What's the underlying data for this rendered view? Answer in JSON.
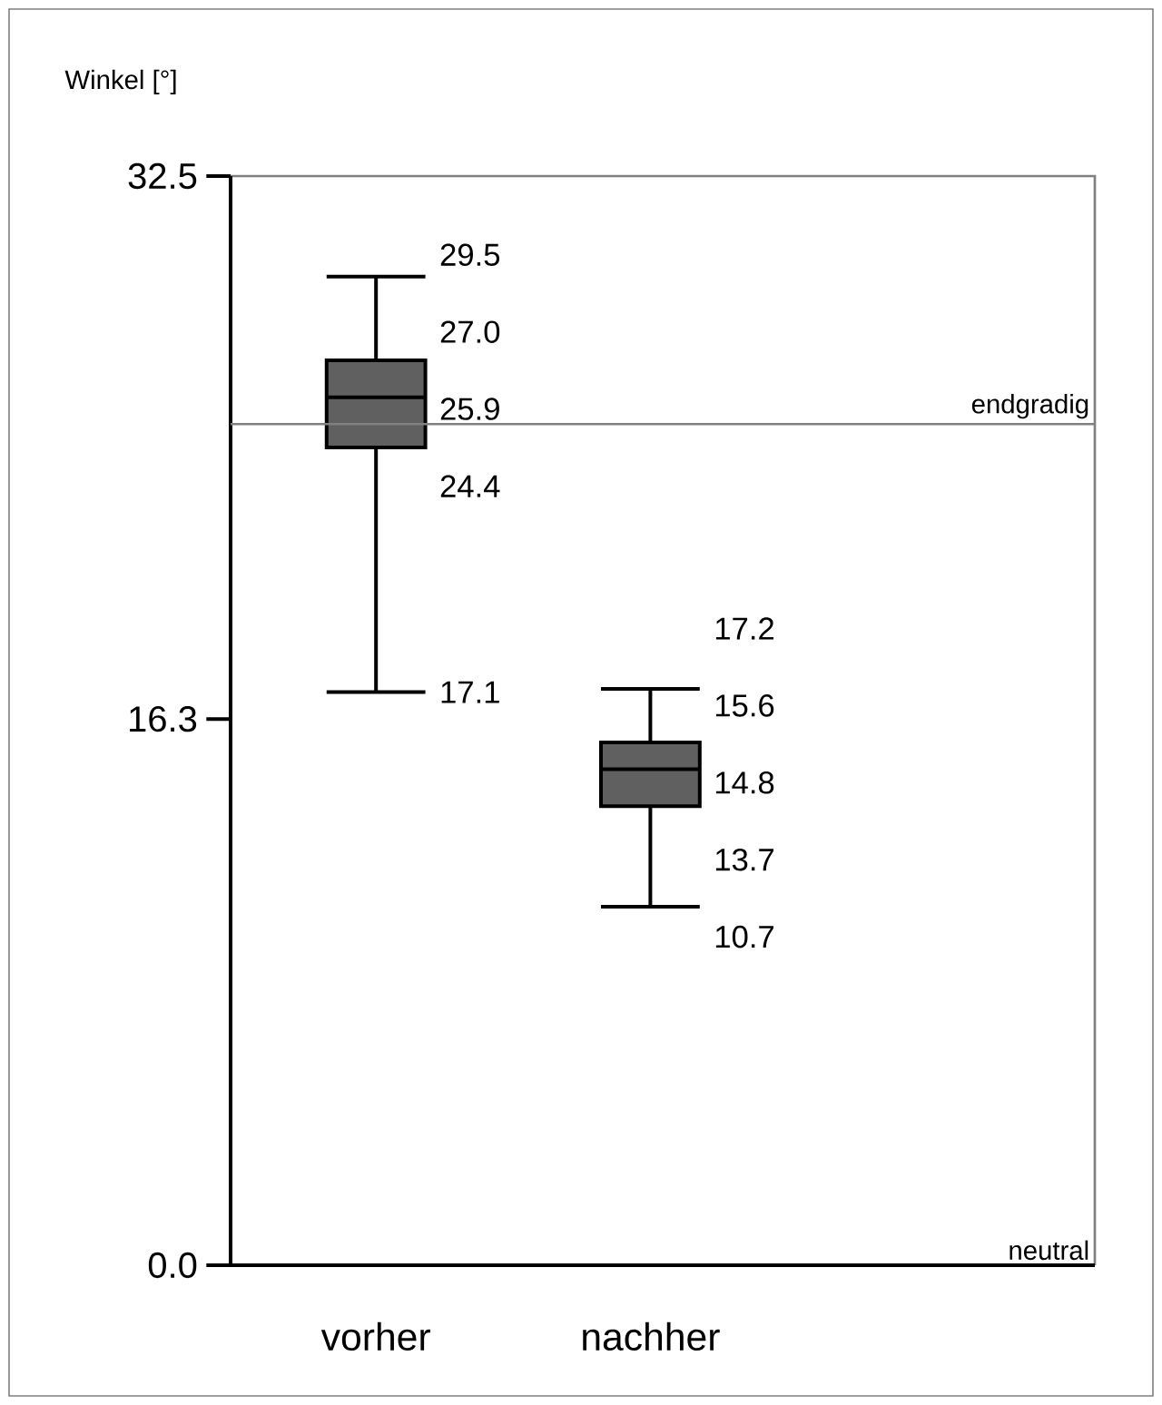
{
  "chart_data": {
    "type": "box",
    "ylabel": "Winkel [°]",
    "categories": [
      "vorher",
      "nachher"
    ],
    "boxes": [
      {
        "low": 17.1,
        "q1": 24.4,
        "median": 25.9,
        "q3": 27.0,
        "high": 29.5
      },
      {
        "low": 10.7,
        "q1": 13.7,
        "median": 14.8,
        "q3": 15.6,
        "high": 17.2
      }
    ],
    "color": "#606060",
    "ylim": [
      0,
      32.5
    ],
    "yticks": [
      {
        "value": 0,
        "label": "0.0"
      },
      16.3,
      32.5
    ],
    "ref_lines": [
      {
        "axis": "y",
        "value": 25.1,
        "label": "endgradig",
        "color": "#808080"
      }
    ],
    "annotations": [
      {
        "text": "29.5",
        "x": "vorher",
        "y": 29.5
      },
      {
        "text": "27.0",
        "x": "vorher",
        "y": 27.0
      },
      {
        "text": "25.9",
        "x": "vorher",
        "y": 25.9
      },
      {
        "text": "24.4",
        "x": "vorher",
        "y": 24.4
      },
      {
        "text": "17.1",
        "x": "vorher",
        "y": 17.1
      },
      {
        "text": "17.2",
        "x": "nachher",
        "y": 17.2
      },
      {
        "text": "15.6",
        "x": "nachher",
        "y": 15.6
      },
      {
        "text": "14.8",
        "x": "nachher",
        "y": 14.8
      },
      {
        "text": "13.7",
        "x": "nachher",
        "y": 13.7
      },
      {
        "text": "10.7",
        "x": "nachher",
        "y": 10.7
      },
      "neutral"
    ]
  }
}
